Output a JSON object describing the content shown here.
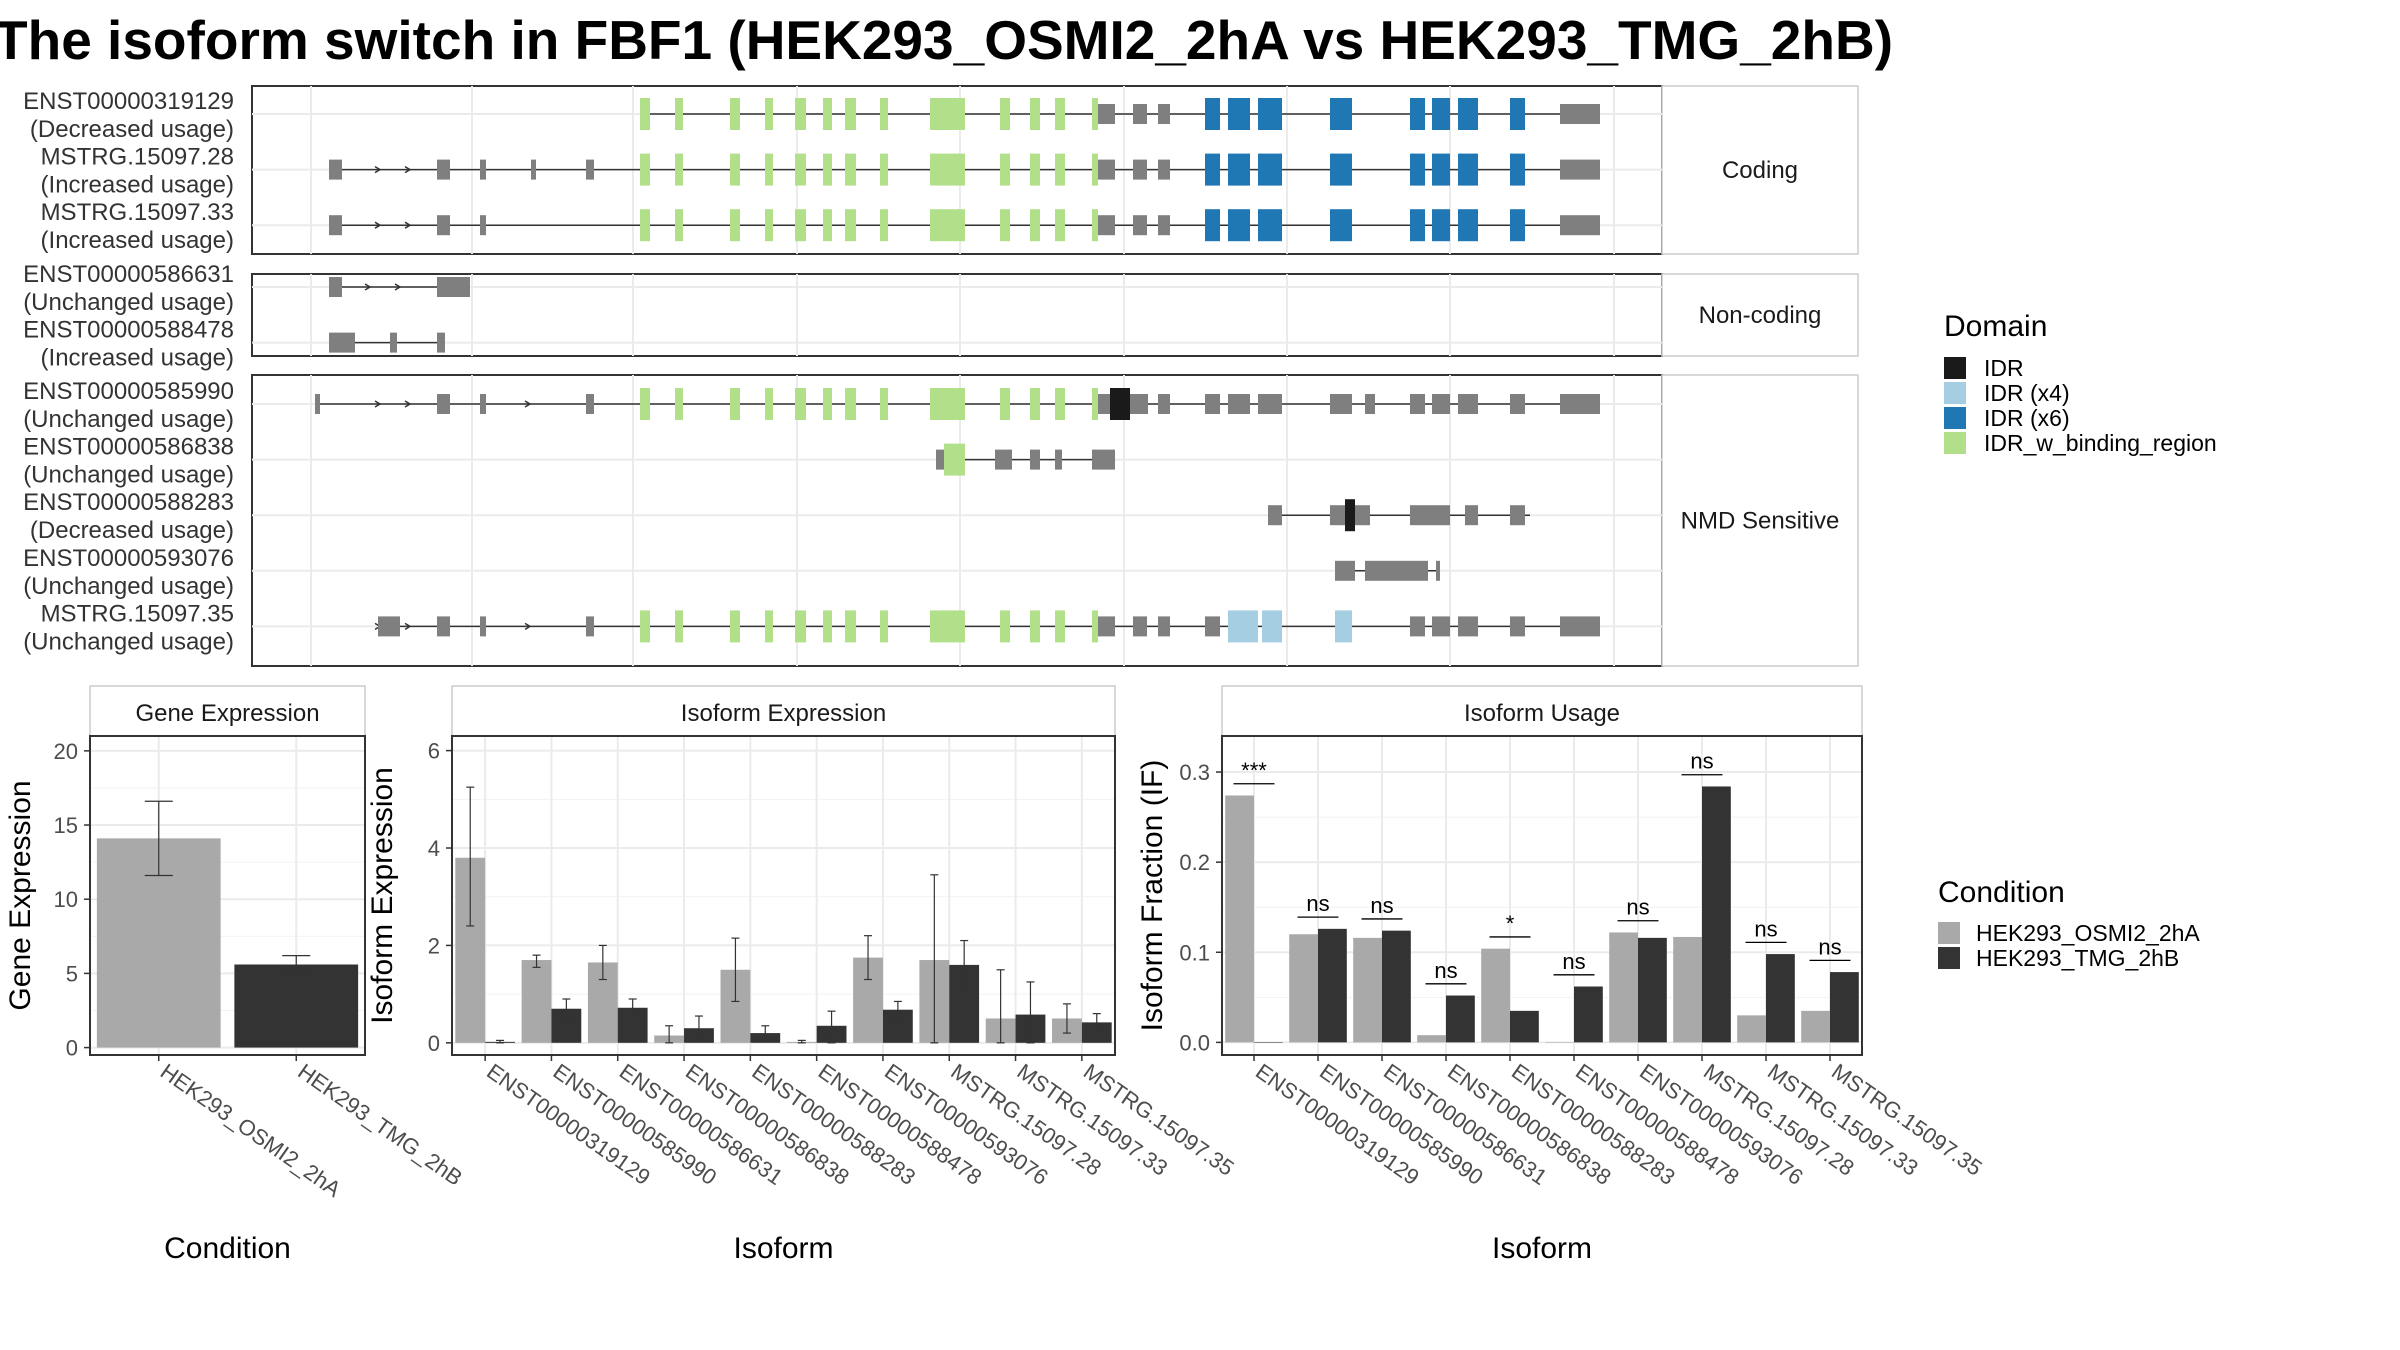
{
  "title": "The isoform switch in FBF1 (HEK293_OSMI2_2hA vs HEK293_TMG_2hB)",
  "colors": {
    "IDR": "#1a1a1a",
    "IDR (x4)": "#a6cee3",
    "IDR (x6)": "#1f78b4",
    "IDR_w_binding_region": "#b2df8a",
    "exon": "#7f7f7f",
    "cond1": "#a9a9a9",
    "cond2": "#333333"
  },
  "structure": {
    "groups": [
      {
        "name": "Coding",
        "transcripts": [
          {
            "id": "ENST00000319129",
            "usage": "(Decreased usage)"
          },
          {
            "id": "MSTRG.15097.28",
            "usage": "(Increased usage)"
          },
          {
            "id": "MSTRG.15097.33",
            "usage": "(Increased usage)"
          }
        ]
      },
      {
        "name": "Non-coding",
        "transcripts": [
          {
            "id": "ENST00000586631",
            "usage": "(Unchanged usage)"
          },
          {
            "id": "ENST00000588478",
            "usage": "(Increased usage)"
          }
        ]
      },
      {
        "name": "NMD Sensitive",
        "transcripts": [
          {
            "id": "ENST00000585990",
            "usage": "(Unchanged usage)"
          },
          {
            "id": "ENST00000586838",
            "usage": "(Unchanged usage)"
          },
          {
            "id": "ENST00000588283",
            "usage": "(Decreased usage)"
          },
          {
            "id": "ENST00000593076",
            "usage": "(Unchanged usage)"
          },
          {
            "id": "MSTRG.15097.35",
            "usage": "(Unchanged usage)"
          }
        ]
      }
    ]
  },
  "legend_domain": {
    "title": "Domain",
    "items": [
      "IDR",
      "IDR (x4)",
      "IDR (x6)",
      "IDR_w_binding_region"
    ]
  },
  "legend_condition": {
    "title": "Condition",
    "items": [
      "HEK293_OSMI2_2hA",
      "HEK293_TMG_2hB"
    ]
  },
  "chart_data": [
    {
      "type": "bar",
      "title": "Gene Expression",
      "xlabel": "Condition",
      "ylabel": "Gene Expression",
      "categories": [
        "HEK293_OSMI2_2hA",
        "HEK293_TMG_2hB"
      ],
      "values": [
        14.1,
        5.6
      ],
      "errors": [
        [
          11.6,
          16.6
        ],
        [
          5.0,
          6.2
        ]
      ],
      "ylim": [
        -0.5,
        21
      ],
      "yticks": [
        0,
        5,
        10,
        15,
        20
      ],
      "grid": true
    },
    {
      "type": "bar",
      "title": "Isoform Expression",
      "xlabel": "Isoform",
      "ylabel": "Isoform Expression",
      "categories": [
        "ENST00000319129",
        "ENST00000585990",
        "ENST00000586631",
        "ENST00000586838",
        "ENST00000588283",
        "ENST00000588478",
        "ENST00000593076",
        "MSTRG.15097.28",
        "MSTRG.15097.33",
        "MSTRG.15097.35"
      ],
      "series": [
        {
          "name": "HEK293_OSMI2_2hA",
          "values": [
            3.8,
            1.7,
            1.65,
            0.15,
            1.5,
            0.02,
            1.75,
            1.7,
            0.5,
            0.5
          ],
          "errors": [
            [
              2.4,
              5.25
            ],
            [
              1.55,
              1.8
            ],
            [
              1.3,
              2.0
            ],
            [
              0.0,
              0.35
            ],
            [
              0.85,
              2.15
            ],
            [
              0.0,
              0.05
            ],
            [
              1.3,
              2.2
            ],
            [
              0.0,
              3.45
            ],
            [
              0.0,
              1.5
            ],
            [
              0.2,
              0.8
            ]
          ]
        },
        {
          "name": "HEK293_TMG_2hB",
          "values": [
            0.02,
            0.7,
            0.72,
            0.3,
            0.2,
            0.35,
            0.68,
            1.6,
            0.58,
            0.42
          ],
          "errors": [
            [
              0.0,
              0.05
            ],
            [
              0.5,
              0.9
            ],
            [
              0.55,
              0.9
            ],
            [
              0.1,
              0.55
            ],
            [
              0.05,
              0.35
            ],
            [
              0.0,
              0.65
            ],
            [
              0.5,
              0.85
            ],
            [
              1.1,
              2.1
            ],
            [
              0.0,
              1.25
            ],
            [
              0.25,
              0.6
            ]
          ]
        }
      ],
      "ylim": [
        -0.25,
        6.3
      ],
      "yticks": [
        0,
        2,
        4,
        6
      ],
      "grid": true
    },
    {
      "type": "bar",
      "title": "Isoform Usage",
      "xlabel": "Isoform",
      "ylabel": "Isoform Fraction (IF)",
      "categories": [
        "ENST00000319129",
        "ENST00000585990",
        "ENST00000586631",
        "ENST00000586838",
        "ENST00000588283",
        "ENST00000588478",
        "ENST00000593076",
        "MSTRG.15097.28",
        "MSTRG.15097.33",
        "MSTRG.15097.35"
      ],
      "series": [
        {
          "name": "HEK293_OSMI2_2hA",
          "values": [
            0.274,
            0.12,
            0.116,
            0.008,
            0.104,
            0.0,
            0.122,
            0.117,
            0.03,
            0.035
          ]
        },
        {
          "name": "HEK293_TMG_2hB",
          "values": [
            0.0,
            0.126,
            0.124,
            0.052,
            0.035,
            0.062,
            0.116,
            0.284,
            0.098,
            0.078
          ]
        }
      ],
      "significance": [
        "***",
        "ns",
        "ns",
        "ns",
        "*",
        "ns",
        "ns",
        "ns",
        "ns",
        "ns"
      ],
      "ylim": [
        -0.014,
        0.34
      ],
      "yticks": [
        0.0,
        0.1,
        0.2,
        0.3
      ],
      "ytick_labels": [
        "0.0",
        "0.1",
        "0.2",
        "0.3"
      ],
      "grid": true
    }
  ]
}
